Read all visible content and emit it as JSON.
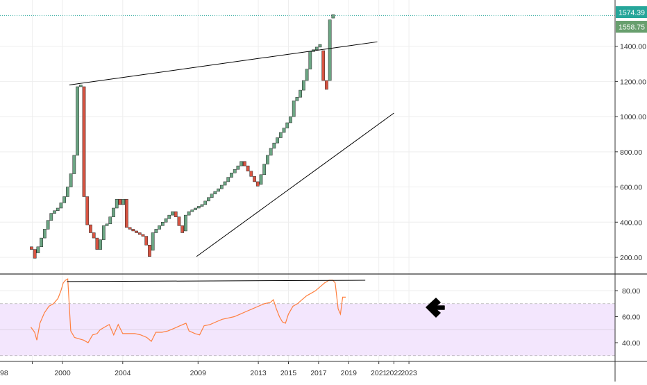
{
  "chart_data": {
    "type": "candlestick",
    "panels": {
      "price": {
        "ylim": [
          130,
          1600
        ],
        "y_ticks": [
          "200.00",
          "400.00",
          "600.00",
          "800.00",
          "1000.00",
          "1200.00",
          "1400.00"
        ],
        "last_price_labels": [
          {
            "value": 1574.39,
            "text": "1574.39",
            "color": "#26a69a"
          },
          {
            "value": 1558.75,
            "text": "1558.75",
            "color": "#689f6e"
          }
        ],
        "grid": true
      },
      "rsi": {
        "ylim": [
          28,
          95
        ],
        "y_ticks": [
          "40.00",
          "60.00",
          "80.00"
        ],
        "band": [
          30,
          70
        ],
        "band_color": "#f3e6fd",
        "line_color": "#ff7f3e"
      }
    },
    "x_ticks": [
      {
        "label": "98",
        "year": 1998.0
      },
      {
        "label": "2000",
        "year": 2000.0
      },
      {
        "label": "2004",
        "year": 2004.0
      },
      {
        "label": "2009",
        "year": 2009.0
      },
      {
        "label": "2013",
        "year": 2013.0
      },
      {
        "label": "2015",
        "year": 2015.0
      },
      {
        "label": "2017",
        "year": 2017.0
      },
      {
        "label": "2019",
        "year": 2019.0
      },
      {
        "label": "2021",
        "year": 2021.0
      },
      {
        "label": "2022",
        "year": 2022.0
      },
      {
        "label": "2023",
        "year": 2023.0
      }
    ],
    "bricks": [
      {
        "o": 260,
        "c": 245
      },
      {
        "o": 245,
        "c": 195
      },
      {
        "o": 225,
        "c": 260
      },
      {
        "o": 260,
        "c": 310
      },
      {
        "o": 310,
        "c": 360
      },
      {
        "o": 360,
        "c": 410
      },
      {
        "o": 410,
        "c": 450
      },
      {
        "o": 450,
        "c": 465
      },
      {
        "o": 465,
        "c": 480
      },
      {
        "o": 480,
        "c": 510
      },
      {
        "o": 510,
        "c": 545
      },
      {
        "o": 545,
        "c": 600
      },
      {
        "o": 600,
        "c": 675
      },
      {
        "o": 675,
        "c": 780
      },
      {
        "o": 780,
        "c": 1170
      },
      {
        "o": 1170,
        "c": 1180
      },
      {
        "o": 1170,
        "c": 545
      },
      {
        "o": 545,
        "c": 385
      },
      {
        "o": 385,
        "c": 340
      },
      {
        "o": 340,
        "c": 310
      },
      {
        "o": 310,
        "c": 245
      },
      {
        "o": 245,
        "c": 300
      },
      {
        "o": 300,
        "c": 380
      },
      {
        "o": 380,
        "c": 390
      },
      {
        "o": 390,
        "c": 430
      },
      {
        "o": 430,
        "c": 480
      },
      {
        "o": 480,
        "c": 530
      },
      {
        "o": 530,
        "c": 500
      },
      {
        "o": 500,
        "c": 530
      },
      {
        "o": 530,
        "c": 370
      },
      {
        "o": 370,
        "c": 360
      },
      {
        "o": 360,
        "c": 350
      },
      {
        "o": 350,
        "c": 340
      },
      {
        "o": 340,
        "c": 330
      },
      {
        "o": 330,
        "c": 320
      },
      {
        "o": 320,
        "c": 270
      },
      {
        "o": 270,
        "c": 205
      },
      {
        "o": 240,
        "c": 340
      },
      {
        "o": 340,
        "c": 360
      },
      {
        "o": 360,
        "c": 380
      },
      {
        "o": 380,
        "c": 400
      },
      {
        "o": 400,
        "c": 420
      },
      {
        "o": 420,
        "c": 440
      },
      {
        "o": 440,
        "c": 460
      },
      {
        "o": 460,
        "c": 430
      },
      {
        "o": 430,
        "c": 380
      },
      {
        "o": 380,
        "c": 340
      },
      {
        "o": 350,
        "c": 440
      },
      {
        "o": 440,
        "c": 460
      },
      {
        "o": 460,
        "c": 470
      },
      {
        "o": 470,
        "c": 480
      },
      {
        "o": 480,
        "c": 490
      },
      {
        "o": 490,
        "c": 500
      },
      {
        "o": 500,
        "c": 520
      },
      {
        "o": 520,
        "c": 540
      },
      {
        "o": 540,
        "c": 560
      },
      {
        "o": 560,
        "c": 575
      },
      {
        "o": 575,
        "c": 590
      },
      {
        "o": 590,
        "c": 610
      },
      {
        "o": 610,
        "c": 630
      },
      {
        "o": 630,
        "c": 655
      },
      {
        "o": 655,
        "c": 680
      },
      {
        "o": 680,
        "c": 700
      },
      {
        "o": 700,
        "c": 720
      },
      {
        "o": 720,
        "c": 745
      },
      {
        "o": 745,
        "c": 720
      },
      {
        "o": 720,
        "c": 690
      },
      {
        "o": 690,
        "c": 660
      },
      {
        "o": 660,
        "c": 630
      },
      {
        "o": 630,
        "c": 605
      },
      {
        "o": 615,
        "c": 670
      },
      {
        "o": 670,
        "c": 730
      },
      {
        "o": 730,
        "c": 780
      },
      {
        "o": 780,
        "c": 820
      },
      {
        "o": 820,
        "c": 850
      },
      {
        "o": 850,
        "c": 880
      },
      {
        "o": 880,
        "c": 910
      },
      {
        "o": 910,
        "c": 935
      },
      {
        "o": 935,
        "c": 965
      },
      {
        "o": 965,
        "c": 1000
      },
      {
        "o": 1000,
        "c": 1090
      },
      {
        "o": 1090,
        "c": 1110
      },
      {
        "o": 1110,
        "c": 1150
      },
      {
        "o": 1150,
        "c": 1205
      },
      {
        "o": 1205,
        "c": 1270
      },
      {
        "o": 1270,
        "c": 1370
      },
      {
        "o": 1370,
        "c": 1380
      },
      {
        "o": 1380,
        "c": 1395
      },
      {
        "o": 1395,
        "c": 1410
      },
      {
        "o": 1375,
        "c": 1205
      },
      {
        "o": 1205,
        "c": 1155
      },
      {
        "o": 1205,
        "c": 1550
      },
      {
        "o": 1560,
        "c": 1580
      }
    ],
    "brick_x_start": 0.0,
    "brick_x_step": 0.2176,
    "trendlines": [
      {
        "name": "upper-resistance",
        "x1": 2000.45,
        "y1": 1180,
        "x2": 2020.9,
        "y2": 1425
      },
      {
        "name": "lower-support",
        "x1": 2008.9,
        "y1": 205,
        "x2": 2022.0,
        "y2": 1020
      }
    ],
    "rsi_trendline": {
      "x1": 2000.3,
      "y1": 87,
      "x2": 2020.1,
      "y2": 88
    },
    "rsi_values": [
      [
        1997.9,
        52
      ],
      [
        1998.15,
        48
      ],
      [
        1998.3,
        42
      ],
      [
        1998.5,
        55
      ],
      [
        1998.8,
        63
      ],
      [
        1999.1,
        68
      ],
      [
        1999.4,
        70
      ],
      [
        1999.7,
        74
      ],
      [
        1999.9,
        80
      ],
      [
        2000.05,
        86
      ],
      [
        2000.2,
        88
      ],
      [
        2000.35,
        89
      ],
      [
        2000.55,
        49
      ],
      [
        2000.8,
        44
      ],
      [
        2001.1,
        43
      ],
      [
        2001.4,
        42
      ],
      [
        2001.7,
        40
      ],
      [
        2002.0,
        46
      ],
      [
        2002.3,
        47
      ],
      [
        2002.5,
        50
      ],
      [
        2002.8,
        52
      ],
      [
        2003.1,
        54
      ],
      [
        2003.4,
        46
      ],
      [
        2003.7,
        54
      ],
      [
        2004.0,
        47
      ],
      [
        2004.4,
        47
      ],
      [
        2004.8,
        47
      ],
      [
        2005.2,
        46
      ],
      [
        2005.6,
        44
      ],
      [
        2005.9,
        41
      ],
      [
        2006.2,
        48
      ],
      [
        2006.6,
        48
      ],
      [
        2007.0,
        49
      ],
      [
        2007.4,
        51
      ],
      [
        2007.8,
        53
      ],
      [
        2008.2,
        55
      ],
      [
        2008.4,
        49
      ],
      [
        2008.8,
        47
      ],
      [
        2009.1,
        46
      ],
      [
        2009.4,
        53
      ],
      [
        2009.8,
        54
      ],
      [
        2010.2,
        56
      ],
      [
        2010.6,
        58
      ],
      [
        2011.0,
        59
      ],
      [
        2011.4,
        60
      ],
      [
        2011.8,
        62
      ],
      [
        2012.2,
        64
      ],
      [
        2012.6,
        66
      ],
      [
        2013.0,
        68
      ],
      [
        2013.4,
        70
      ],
      [
        2013.8,
        71
      ],
      [
        2014.0,
        73
      ],
      [
        2014.2,
        66
      ],
      [
        2014.4,
        60
      ],
      [
        2014.6,
        56
      ],
      [
        2014.8,
        55
      ],
      [
        2015.0,
        62
      ],
      [
        2015.3,
        68
      ],
      [
        2015.6,
        70
      ],
      [
        2015.9,
        73
      ],
      [
        2016.2,
        76
      ],
      [
        2016.5,
        78
      ],
      [
        2016.8,
        80
      ],
      [
        2017.1,
        83
      ],
      [
        2017.4,
        86
      ],
      [
        2017.7,
        88
      ],
      [
        2017.95,
        88
      ],
      [
        2018.1,
        86
      ],
      [
        2018.3,
        66
      ],
      [
        2018.45,
        62
      ],
      [
        2018.6,
        75
      ],
      [
        2018.8,
        75
      ]
    ]
  }
}
